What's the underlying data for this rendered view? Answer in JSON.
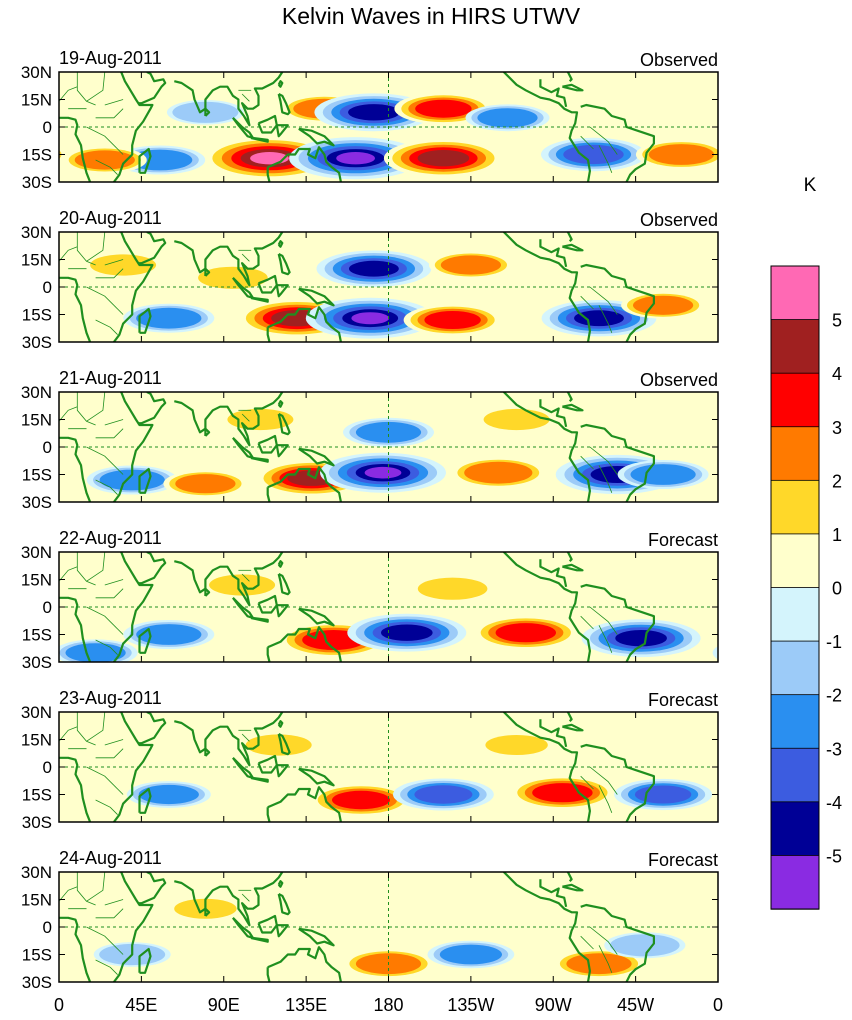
{
  "chart_data": {
    "type": "heatmap",
    "title": "Kelvin Waves in HIRS UTWV",
    "units": "K",
    "x_tick_labels": [
      "0",
      "45E",
      "90E",
      "135E",
      "180",
      "135W",
      "90W",
      "45W",
      "0"
    ],
    "x_range_deg_east": [
      0,
      360
    ],
    "y_tick_labels": [
      "30N",
      "15N",
      "0",
      "15S",
      "30S"
    ],
    "y_range_deg": [
      -30,
      30
    ],
    "reference_lines": [
      "equator (0)",
      "dateline (180)"
    ],
    "panels": [
      {
        "date": "19-Aug-2011",
        "status": "Observed",
        "anomalies": [
          {
            "lon": 115,
            "lat": -17,
            "value": 5.5
          },
          {
            "lon": 145,
            "lat": 10,
            "value": 2.2
          },
          {
            "lon": 162,
            "lat": -17,
            "value": -5.5
          },
          {
            "lon": 172,
            "lat": 8,
            "value": -4.5
          },
          {
            "lon": 210,
            "lat": -17,
            "value": 4.5
          },
          {
            "lon": 210,
            "lat": 10,
            "value": 3.0
          },
          {
            "lon": 245,
            "lat": 5,
            "value": -2.0
          },
          {
            "lon": 292,
            "lat": -15,
            "value": -3.5
          },
          {
            "lon": 340,
            "lat": -15,
            "value": 2.5
          },
          {
            "lon": 55,
            "lat": -18,
            "value": -2.5
          },
          {
            "lon": 25,
            "lat": -18,
            "value": 2.0
          },
          {
            "lon": 80,
            "lat": 8,
            "value": -1.5
          }
        ]
      },
      {
        "date": "20-Aug-2011",
        "status": "Observed",
        "anomalies": [
          {
            "lon": 130,
            "lat": -17,
            "value": 4.5
          },
          {
            "lon": 170,
            "lat": -17,
            "value": -5.2
          },
          {
            "lon": 172,
            "lat": 10,
            "value": -4.2
          },
          {
            "lon": 215,
            "lat": -18,
            "value": 3.0
          },
          {
            "lon": 225,
            "lat": 12,
            "value": 2.0
          },
          {
            "lon": 295,
            "lat": -17,
            "value": -4.2
          },
          {
            "lon": 330,
            "lat": -10,
            "value": 2.0
          },
          {
            "lon": 60,
            "lat": -17,
            "value": -2.5
          },
          {
            "lon": 95,
            "lat": 5,
            "value": 1.8
          },
          {
            "lon": 35,
            "lat": 12,
            "value": 1.5
          }
        ]
      },
      {
        "date": "21-Aug-2011",
        "status": "Observed",
        "anomalies": [
          {
            "lon": 138,
            "lat": -17,
            "value": 4.0
          },
          {
            "lon": 177,
            "lat": -14,
            "value": -5.0
          },
          {
            "lon": 180,
            "lat": 8,
            "value": -2.5
          },
          {
            "lon": 240,
            "lat": -14,
            "value": 2.8
          },
          {
            "lon": 305,
            "lat": -15,
            "value": -4.8
          },
          {
            "lon": 330,
            "lat": -15,
            "value": -2.5
          },
          {
            "lon": 40,
            "lat": -18,
            "value": -2.5
          },
          {
            "lon": 80,
            "lat": -20,
            "value": 2.0
          },
          {
            "lon": 110,
            "lat": 15,
            "value": 1.5
          },
          {
            "lon": 250,
            "lat": 15,
            "value": 1.5
          }
        ]
      },
      {
        "date": "22-Aug-2011",
        "status": "Forecast",
        "anomalies": [
          {
            "lon": 150,
            "lat": -18,
            "value": 3.8
          },
          {
            "lon": 190,
            "lat": -14,
            "value": -4.5
          },
          {
            "lon": 255,
            "lat": -14,
            "value": 3.5
          },
          {
            "lon": 318,
            "lat": -17,
            "value": -4.5
          },
          {
            "lon": 215,
            "lat": 10,
            "value": 1.8
          },
          {
            "lon": 60,
            "lat": -15,
            "value": -2.5
          },
          {
            "lon": 100,
            "lat": 12,
            "value": 1.5
          },
          {
            "lon": 20,
            "lat": -25,
            "value": -2.0
          }
        ]
      },
      {
        "date": "23-Aug-2011",
        "status": "Forecast",
        "anomalies": [
          {
            "lon": 165,
            "lat": -18,
            "value": 3.2
          },
          {
            "lon": 210,
            "lat": -15,
            "value": -3.2
          },
          {
            "lon": 275,
            "lat": -14,
            "value": 3.5
          },
          {
            "lon": 330,
            "lat": -15,
            "value": -3.0
          },
          {
            "lon": 60,
            "lat": -15,
            "value": -2.0
          },
          {
            "lon": 120,
            "lat": 12,
            "value": 1.5
          },
          {
            "lon": 250,
            "lat": 12,
            "value": 1.2
          }
        ]
      },
      {
        "date": "24-Aug-2011",
        "status": "Forecast",
        "anomalies": [
          {
            "lon": 180,
            "lat": -20,
            "value": 2.5
          },
          {
            "lon": 225,
            "lat": -15,
            "value": -2.2
          },
          {
            "lon": 295,
            "lat": -20,
            "value": 2.5
          },
          {
            "lon": 320,
            "lat": -10,
            "value": -1.8
          },
          {
            "lon": 40,
            "lat": -15,
            "value": -1.5
          },
          {
            "lon": 80,
            "lat": 10,
            "value": 1.2
          }
        ]
      }
    ],
    "colorbar": {
      "label": "K",
      "tick_labels": [
        "5",
        "4",
        "3",
        "2",
        "1",
        "0",
        "-1",
        "-2",
        "-3",
        "-4",
        "-5"
      ],
      "levels": [
        5,
        4,
        3,
        2,
        1,
        0,
        -1,
        -2,
        -3,
        -4,
        -5
      ],
      "colors": [
        "#ff69b4",
        "#a02020",
        "#ff0000",
        "#ff7a00",
        "#ffd829",
        "#ffffcc",
        "#d4f4fc",
        "#9ccbf8",
        "#2a8ff0",
        "#3c5ce0",
        "#000096",
        "#8a2be2"
      ]
    },
    "coastline_color": "#1f8f1f"
  }
}
